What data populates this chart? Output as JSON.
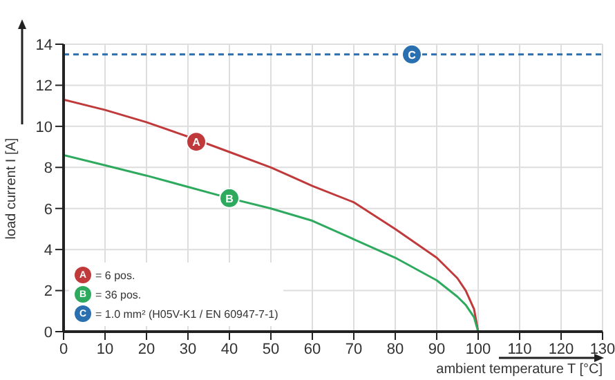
{
  "chart_data": {
    "type": "line",
    "xlabel": "ambient temperature T [°C]",
    "ylabel": "load current I [A]",
    "xlim": [
      0,
      130
    ],
    "xticks": [
      0,
      10,
      20,
      30,
      40,
      50,
      60,
      70,
      80,
      90,
      100,
      110,
      120,
      130
    ],
    "ylim": [
      0,
      14
    ],
    "yticks": [
      0,
      2,
      4,
      6,
      8,
      10,
      12,
      14
    ],
    "grid": true,
    "legend": "bottom left",
    "marker": "none",
    "series": [
      {
        "name": "= 6 pos.",
        "color": "#c0393b",
        "line_style": "solid",
        "x": [
          0,
          10,
          20,
          30,
          40,
          50,
          60,
          70,
          80,
          90,
          95,
          97,
          99,
          100
        ],
        "values": [
          11.3,
          10.8,
          10.2,
          9.5,
          8.75,
          8.0,
          7.1,
          6.3,
          5.0,
          3.6,
          2.6,
          2.0,
          1.1,
          0
        ]
      },
      {
        "name": "= 36 pos.",
        "color": "#2eaa5f",
        "line_style": "solid",
        "x": [
          0,
          10,
          20,
          30,
          40,
          50,
          60,
          70,
          80,
          90,
          95,
          97,
          99,
          100
        ],
        "values": [
          8.6,
          8.1,
          7.6,
          7.05,
          6.5,
          6.0,
          5.4,
          4.5,
          3.6,
          2.5,
          1.7,
          1.3,
          0.7,
          0
        ]
      },
      {
        "name": "= 1.0 mm² (H05V-K1 / EN 60947-7-1)",
        "color": "#2a6fb0",
        "line_style": "dashed",
        "x": [
          0,
          130
        ],
        "values": [
          13.5,
          13.5
        ]
      }
    ],
    "annotations": [
      {
        "text": "A",
        "x": 32,
        "y": 9.25
      },
      {
        "text": "B",
        "x": 40,
        "y": 6.5
      },
      {
        "text": "C",
        "x": 84,
        "y": 13.5
      }
    ]
  }
}
